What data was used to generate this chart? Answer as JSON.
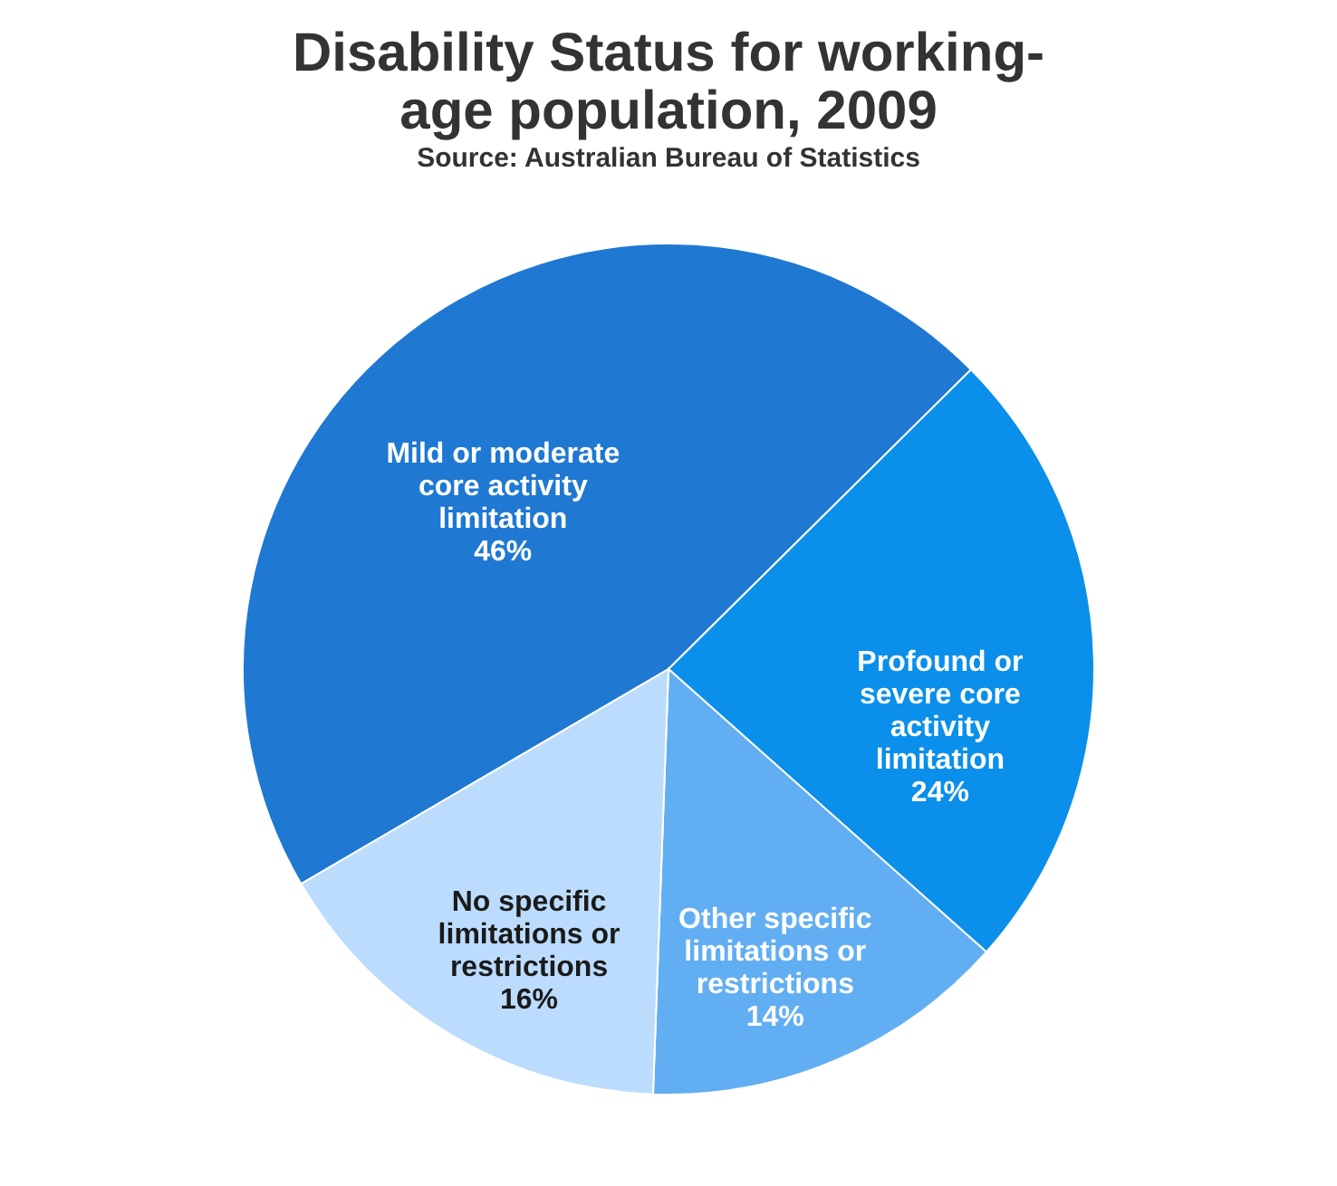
{
  "chart_data": {
    "type": "pie",
    "title": "Disability  Status for working-age population, 2009",
    "annotations": [
      "Source: Australian Bureau of Statistics"
    ],
    "categories": [
      "Mild or moderate core activity limitation",
      "Profound or severe core activity limitation",
      "Other specific limitations or restrictions",
      "No specific limitations or restrictions"
    ],
    "values": [
      46,
      24,
      14,
      16
    ],
    "colors": [
      "#1f78d1",
      "#0a8fea",
      "#62aef2",
      "#bcdcfd"
    ],
    "value_labels": [
      "46%",
      "24%",
      "14%",
      "16%"
    ],
    "legend": false
  }
}
